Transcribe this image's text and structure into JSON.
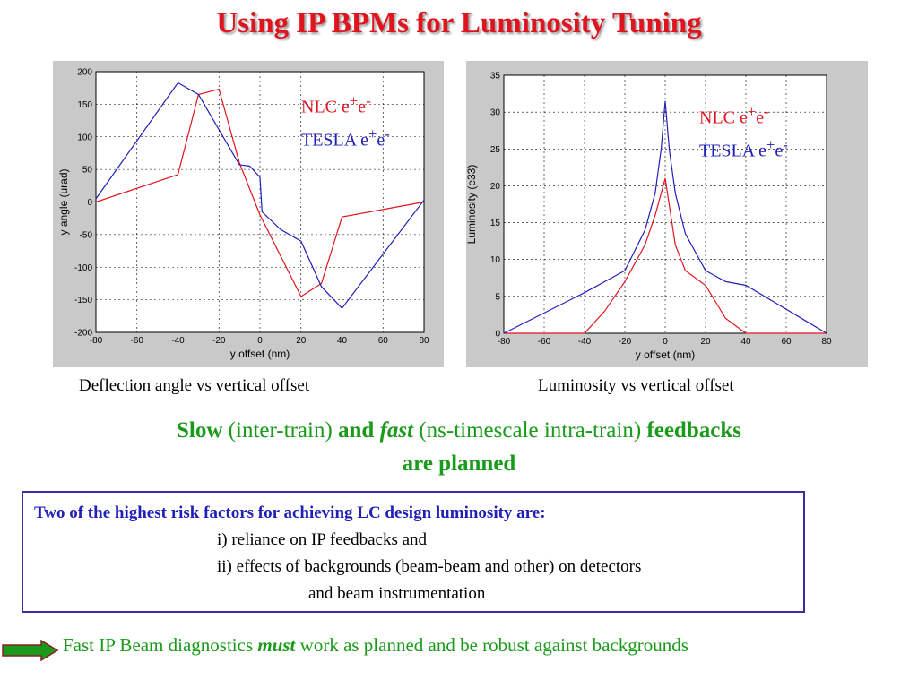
{
  "title": "Using IP BPMs for Luminosity Tuning",
  "colors": {
    "nlc": "#e0141e",
    "tesla": "#2020b8",
    "accent_green": "#1a9a1a",
    "box_border": "#3a2ea8"
  },
  "legend": {
    "nlc": {
      "label": "NLC e",
      "sup1": "+",
      "mid": "e",
      "sup2": "-"
    },
    "tesla": {
      "label": "TESLA e",
      "sup1": "+",
      "mid": "e",
      "sup2": "-"
    }
  },
  "captions": {
    "left": "Deflection angle vs vertical offset",
    "right": "Luminosity vs vertical offset"
  },
  "feedback": {
    "slow": "Slow",
    "inter": " (inter-train) ",
    "and": "and",
    "fast": "fast",
    "intra": " (ns-timescale intra-train) ",
    "feedbacks": "feedbacks",
    "planned": "are planned"
  },
  "risk": {
    "heading": "Two of the highest risk factors for achieving LC design luminosity are:",
    "item1": "i) reliance on IP feedbacks and",
    "item2": "ii) effects of backgrounds  (beam-beam and other) on detectors",
    "item2b": "and beam instrumentation"
  },
  "bottom": {
    "pre": "Fast IP Beam diagnostics ",
    "must": "must",
    "post": " work as planned and be robust against backgrounds"
  },
  "chart_data": [
    {
      "type": "line",
      "xlabel": "y offset (nm)",
      "ylabel": "y angle (urad)",
      "xlim": [
        -80,
        80
      ],
      "ylim": [
        -200,
        200
      ],
      "xticks": [
        -80,
        -60,
        -40,
        -20,
        0,
        20,
        40,
        60,
        80
      ],
      "yticks": [
        200,
        150,
        100,
        50,
        0,
        -50,
        -100,
        -150,
        -200
      ],
      "grid": true,
      "series": [
        {
          "name": "NLC e+e-",
          "color": "#e0141e",
          "x": [
            -80,
            -40,
            -30,
            -20,
            -10,
            0,
            20,
            30,
            40,
            80
          ],
          "y": [
            0,
            42,
            165,
            173,
            60,
            -20,
            -145,
            -125,
            -23,
            0
          ]
        },
        {
          "name": "TESLA e+e-",
          "color": "#2020b8",
          "x": [
            -80,
            -40,
            -30,
            -10,
            -5,
            0,
            1,
            10,
            20,
            30,
            40,
            80
          ],
          "y": [
            5,
            183,
            165,
            57,
            55,
            38,
            -15,
            -42,
            -60,
            -130,
            -163,
            3
          ]
        }
      ]
    },
    {
      "type": "line",
      "xlabel": "y offset (nm)",
      "ylabel": "Luminosity (e33)",
      "xlim": [
        -80,
        80
      ],
      "ylim": [
        0,
        35
      ],
      "xticks": [
        -80,
        -60,
        -40,
        -20,
        0,
        20,
        40,
        60,
        80
      ],
      "yticks": [
        35,
        30,
        25,
        20,
        15,
        10,
        5,
        0
      ],
      "grid": true,
      "series": [
        {
          "name": "NLC e+e-",
          "color": "#e0141e",
          "x": [
            -80,
            -40,
            -30,
            -20,
            -10,
            -5,
            0,
            5,
            10,
            20,
            30,
            40,
            80
          ],
          "y": [
            0,
            0,
            3,
            7,
            12,
            16,
            21,
            12,
            8.5,
            6.5,
            2,
            0,
            0
          ]
        },
        {
          "name": "TESLA e+e-",
          "color": "#2020b8",
          "x": [
            -80,
            -40,
            -20,
            -10,
            -5,
            -2,
            0,
            2,
            5,
            10,
            20,
            30,
            40,
            80
          ],
          "y": [
            0,
            5.5,
            8.5,
            14,
            19,
            25,
            31.5,
            25,
            19,
            13.5,
            8.5,
            7,
            6.5,
            0
          ]
        }
      ]
    }
  ]
}
